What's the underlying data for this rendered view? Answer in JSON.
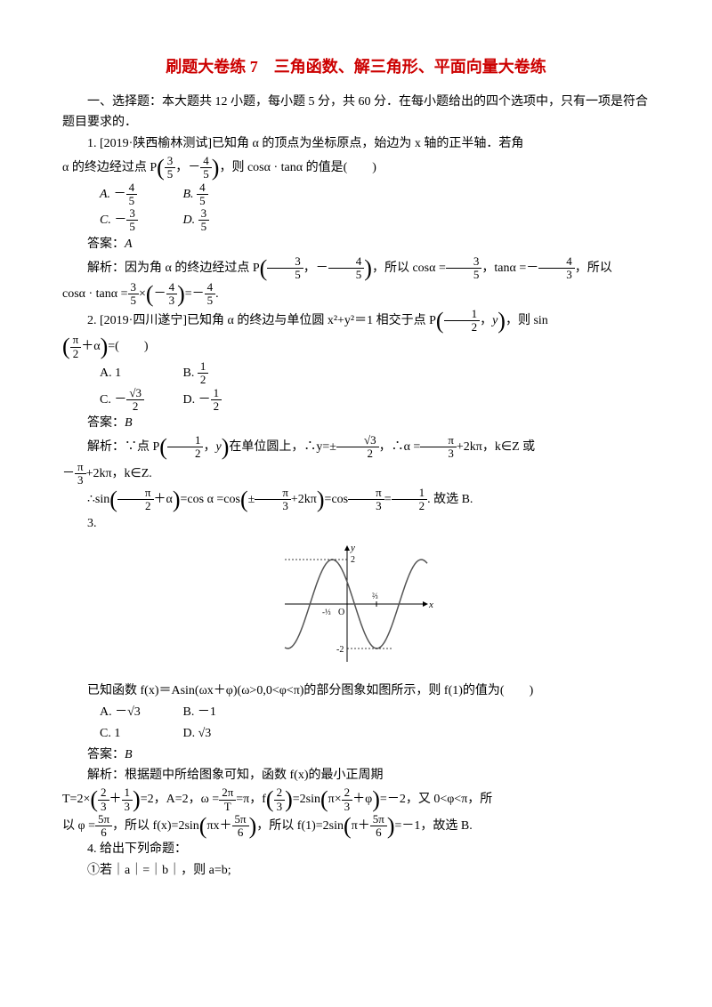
{
  "title_prefix": "刷题大卷练 7",
  "title_rest": "　三角函数、解三角形、平面向量大卷练",
  "title_color": "#cc0000",
  "section1_heading": "一、选择题：本大题共 12 小题，每小题 5 分，共 60 分．在每小题给出的四个选项中，只有一项是符合题目要求的．",
  "q1": {
    "stem_a": "1. [2019·陕西榆林测试]已知角 α 的顶点为坐标原点，始边为 x 轴的正半轴．若角",
    "stem_b_pre": "α 的终边经过点 P",
    "stem_b_post": "，则 cosα · tanα 的值是(　　)",
    "point_x_num": "3",
    "point_x_den": "5",
    "point_y_sign": "－",
    "point_y_num": "4",
    "point_y_den": "5",
    "optA_sign": "－",
    "optA_num": "4",
    "optA_den": "5",
    "optB_num": "4",
    "optB_den": "5",
    "optC_sign": "－",
    "optC_num": "3",
    "optC_den": "5",
    "optD_num": "3",
    "optD_den": "5",
    "answer_label": "答案：",
    "answer": "A",
    "expl_label": "解析：",
    "expl_a": "因为角 α 的终边经过点 P",
    "expl_b": "，所以 cosα =",
    "cos_num": "3",
    "cos_den": "5",
    "expl_c": "，tanα =－",
    "tan_num": "4",
    "tan_den": "3",
    "expl_d": "，所以",
    "expl_e_pre": "cosα · tanα =",
    "mul_a_num": "3",
    "mul_a_den": "5",
    "mul_mid": "×",
    "mul_b_sign": "－",
    "mul_b_num": "4",
    "mul_b_den": "3",
    "expl_eq": "=－",
    "res_num": "4",
    "res_den": "5",
    "expl_end": "."
  },
  "q2": {
    "stem_a": "2. [2019·四川遂宁]已知角 α 的终边与单位圆 x²+y²＝1 相交于点 P",
    "p_x_num": "1",
    "p_x_den": "2",
    "p_y": "y",
    "stem_b": "，则 sin",
    "arg_num": "π",
    "arg_den": "2",
    "arg_plus": "＋α",
    "stem_c": "=(　　)",
    "optA": "A. 1",
    "optB_pre": "B.",
    "optB_num": "1",
    "optB_den": "2",
    "optC_pre": "C. －",
    "optC_num": "√3",
    "optC_den": "2",
    "optD_pre": "D. －",
    "optD_num": "1",
    "optD_den": "2",
    "answer_label": "答案：",
    "answer": "B",
    "expl_label": "解析：",
    "e1": "∵点 P",
    "e2": "在单位圆上，∴y=±",
    "y_num": "√3",
    "y_den": "2",
    "e3": "，∴α =",
    "a1_num": "π",
    "a1_den": "3",
    "e4": "+2kπ，k∈Z 或",
    "line2_pre": "－",
    "a2_num": "π",
    "a2_den": "3",
    "line2_post": "+2kπ，k∈Z.",
    "line3_pre": "∴sin",
    "sin_arg_num": "π",
    "sin_arg_den": "2",
    "sin_arg_plus": "＋α",
    "line3_mid1": "=cos α =cos",
    "cos_arg_pm": "±",
    "cos_arg_num": "π",
    "cos_arg_den": "3",
    "cos_arg_post": "+2kπ",
    "line3_mid2": "=cos",
    "cos2_num": "π",
    "cos2_den": "3",
    "line3_eq": "=",
    "res_num": "1",
    "res_den": "2",
    "line3_end": ". 故选 B."
  },
  "q3": {
    "num": "3.",
    "graph": {
      "x_tick_label": "-⅓",
      "x_tick_x": -0.333,
      "y_tick_label": "⅔",
      "y_tick_x": 0.667,
      "y_max_label": "2",
      "y_min_label": "-2",
      "axis_color": "#000000",
      "curve_color": "#555555",
      "amplitude": 2,
      "width": 180,
      "height": 140
    },
    "stem": "已知函数 f(x)＝Asin(ωx＋φ)(ω>0,0<φ<π)的部分图象如图所示，则 f(1)的值为(　　)",
    "optA": "A. －√3",
    "optB": "B. －1",
    "optC": "C. 1",
    "optD": "D. √3",
    "answer_label": "答案：",
    "answer": "B",
    "expl_label": "解析：",
    "e1": "根据题中所给图象可知，函数 f(x)的最小正周期",
    "line2_pre": "T=2×",
    "T_a_num": "2",
    "T_a_den": "3",
    "T_plus": "＋",
    "T_b_num": "1",
    "T_b_den": "3",
    "line2_mid1": "=2，A=2，ω =",
    "w_num": "2π",
    "w_den": "T",
    "line2_mid2": "=π，f",
    "f_arg_num": "2",
    "f_arg_den": "3",
    "line2_mid3": "=2sin",
    "s_arg_a": "π",
    "s_arg_times": "×",
    "s_arg_b_num": "2",
    "s_arg_b_den": "3",
    "s_arg_plus": "＋φ",
    "line2_mid4": "=－2，又 0<φ<π，所",
    "line3_pre": "以 φ =",
    "phi_num": "5π",
    "phi_den": "6",
    "line3_mid1": "，所以 f(x)=2sin",
    "fx_arg_a": "πx＋",
    "fx_arg_num": "5π",
    "fx_arg_den": "6",
    "line3_mid2": "，所以 f(1)=2sin",
    "f1_arg_a": "π＋",
    "f1_arg_num": "5π",
    "f1_arg_den": "6",
    "line3_end": "=－1，故选 B."
  },
  "q4": {
    "stem": "4. 给出下列命题：",
    "item1": "①若｜a｜=｜b｜，则 a=b;"
  }
}
